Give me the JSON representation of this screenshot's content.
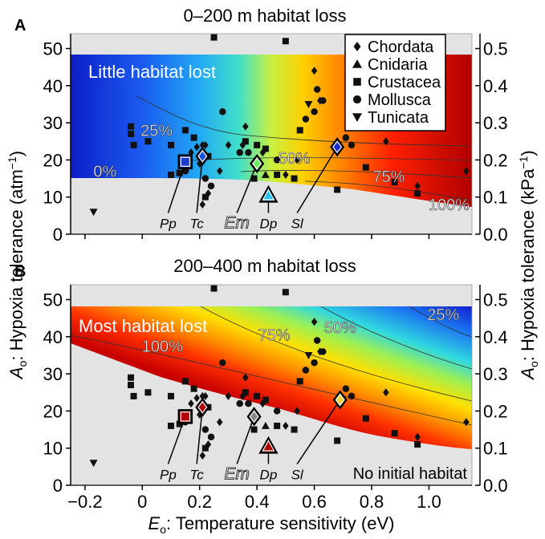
{
  "figure": {
    "xlabel_pre": "E",
    "xlabel_sub": "o",
    "xlabel_post": ": Temperature sensitivity (eV)",
    "ylabel_pre": "A",
    "ylabel_sub": "o",
    "ylabel_post": ": Hypoxia tolerance (atm",
    "ylabel_sup": "−1",
    "ylabel_close": ")",
    "ylabel2_pre": "A",
    "ylabel2_sub": "o",
    "ylabel2_post": ": Hypoxia tolerance (kPa",
    "ylabel2_sup": "−1",
    "ylabel2_close": ")",
    "x_ticks": [
      "−0.2",
      "0",
      "0.2",
      "0.4",
      "0.6",
      "0.8",
      "1.0"
    ],
    "y_ticks": [
      "0",
      "10",
      "20",
      "30",
      "40",
      "50"
    ],
    "y2_ticks": [
      "0.0",
      "0.1",
      "0.2",
      "0.3",
      "0.4",
      "0.5"
    ],
    "legend": [
      {
        "label": "Chordata",
        "marker": "diamond"
      },
      {
        "label": "Cnidaria",
        "marker": "triangle"
      },
      {
        "label": "Crustacea",
        "marker": "square"
      },
      {
        "label": "Mollusca",
        "marker": "circle"
      },
      {
        "label": "Tunicata",
        "marker": "triangle-down"
      }
    ],
    "colors": {
      "no_habitat": "#e3e3e3",
      "marker": "#111111",
      "deep_red": "#a80000",
      "deep_blue": "#1c2fd0"
    }
  },
  "chart_data": [
    {
      "type": "heatmap",
      "panel_letter": "A",
      "title": "0–200 m habitat loss",
      "region_label": "Little habitat lost",
      "xlim": [
        -0.25,
        1.15
      ],
      "ylim": [
        0,
        54
      ],
      "y2lim": [
        0,
        0.54
      ],
      "contours": [
        {
          "label": "0%",
          "x": -0.13,
          "y": 17
        },
        {
          "label": "25%",
          "x": 0.05,
          "y": 28
        },
        {
          "label": "50%",
          "x": 0.53,
          "y": 20.5
        },
        {
          "label": "75%",
          "x": 0.86,
          "y": 15.5
        },
        {
          "label": "100%",
          "x": 1.07,
          "y": 8
        }
      ],
      "species_highlight": [
        {
          "label": "Pp",
          "x": 0.15,
          "y": 19.5,
          "marker": "square",
          "color": "#1c3fd0",
          "lx": 0.09,
          "ly": 4
        },
        {
          "label": "Tc",
          "x": 0.21,
          "y": 21,
          "marker": "diamond",
          "color": "#1a4fe0",
          "lx": 0.19,
          "ly": 4
        },
        {
          "label": "Em",
          "x": 0.4,
          "y": 19,
          "marker": "diamond",
          "color": "#6cf060",
          "lx": 0.33,
          "ly": 4
        },
        {
          "label": "Dp",
          "x": 0.44,
          "y": 10.5,
          "marker": "triangle",
          "color": "#28c8f0",
          "lx": 0.44,
          "ly": 4
        },
        {
          "label": "Sl",
          "x": 0.68,
          "y": 23.5,
          "marker": "diamond",
          "color": "#1a2ad0",
          "lx": 0.54,
          "ly": 4
        }
      ]
    },
    {
      "type": "heatmap",
      "panel_letter": "B",
      "title": "200–400 m habitat loss",
      "region_label": "Most habitat lost",
      "region_label2": "No initial habitat",
      "xlim": [
        -0.25,
        1.15
      ],
      "ylim": [
        0,
        54
      ],
      "y2lim": [
        0,
        0.54
      ],
      "contours": [
        {
          "label": "100%",
          "x": 0.07,
          "y": 37.5
        },
        {
          "label": "75%",
          "x": 0.46,
          "y": 40.5
        },
        {
          "label": "50%",
          "x": 0.69,
          "y": 42.5
        },
        {
          "label": "25%",
          "x": 1.05,
          "y": 46
        }
      ],
      "species_highlight": [
        {
          "label": "Pp",
          "x": 0.15,
          "y": 18.5,
          "marker": "square",
          "color": "#b00000",
          "lx": 0.09,
          "ly": 4
        },
        {
          "label": "Tc",
          "x": 0.21,
          "y": 21,
          "marker": "diamond",
          "color": "#b00000",
          "lx": 0.19,
          "ly": 4
        },
        {
          "label": "Em",
          "x": 0.39,
          "y": 18.5,
          "marker": "diamond",
          "color": "#888888",
          "lx": 0.33,
          "ly": 4
        },
        {
          "label": "Dp",
          "x": 0.44,
          "y": 10.5,
          "marker": "triangle",
          "color": "#b00000",
          "lx": 0.44,
          "ly": 4
        },
        {
          "label": "Sl",
          "x": 0.69,
          "y": 23,
          "marker": "diamond",
          "color": "#f0d040",
          "lx": 0.54,
          "ly": 4
        }
      ]
    }
  ],
  "points": {
    "chordata": [
      [
        0.17,
        22
      ],
      [
        0.19,
        23.5
      ],
      [
        0.2,
        19
      ],
      [
        0.21,
        24
      ],
      [
        0.21,
        8
      ],
      [
        0.23,
        11
      ],
      [
        0.22,
        24
      ],
      [
        0.27,
        17
      ],
      [
        0.3,
        24
      ],
      [
        0.35,
        24
      ],
      [
        0.36,
        29
      ],
      [
        0.42,
        22
      ],
      [
        0.5,
        16
      ],
      [
        0.54,
        20
      ],
      [
        0.6,
        44
      ],
      [
        0.62,
        36
      ],
      [
        0.85,
        25
      ],
      [
        0.96,
        13
      ],
      [
        1.13,
        17
      ]
    ],
    "cnidaria": [
      [
        0.15,
        18
      ],
      [
        0.43,
        16
      ]
    ],
    "crustacea": [
      [
        -0.04,
        29
      ],
      [
        -0.04,
        27
      ],
      [
        -0.03,
        24
      ],
      [
        0.02,
        25
      ],
      [
        0.1,
        24
      ],
      [
        0.1,
        16
      ],
      [
        0.13,
        16.5
      ],
      [
        0.15,
        28
      ],
      [
        0.18,
        26
      ],
      [
        0.22,
        10
      ],
      [
        0.23,
        21
      ],
      [
        0.25,
        53
      ],
      [
        0.36,
        25
      ],
      [
        0.39,
        15
      ],
      [
        0.4,
        24
      ],
      [
        0.43,
        23
      ],
      [
        0.47,
        16
      ],
      [
        0.5,
        52
      ],
      [
        0.53,
        15
      ],
      [
        0.55,
        28
      ],
      [
        0.68,
        12
      ],
      [
        0.78,
        18
      ],
      [
        0.88,
        14
      ],
      [
        0.96,
        11
      ]
    ],
    "mollusca": [
      [
        0.15,
        17
      ],
      [
        0.22,
        15
      ],
      [
        0.24,
        13
      ],
      [
        0.28,
        33
      ],
      [
        0.34,
        22
      ],
      [
        0.37,
        22
      ],
      [
        0.47,
        20
      ],
      [
        0.57,
        31
      ],
      [
        0.6,
        33
      ],
      [
        0.61,
        39
      ],
      [
        0.63,
        36
      ],
      [
        0.71,
        26
      ],
      [
        0.73,
        24
      ]
    ],
    "tunicata": [
      [
        -0.17,
        6
      ],
      [
        0.58,
        35
      ]
    ]
  }
}
